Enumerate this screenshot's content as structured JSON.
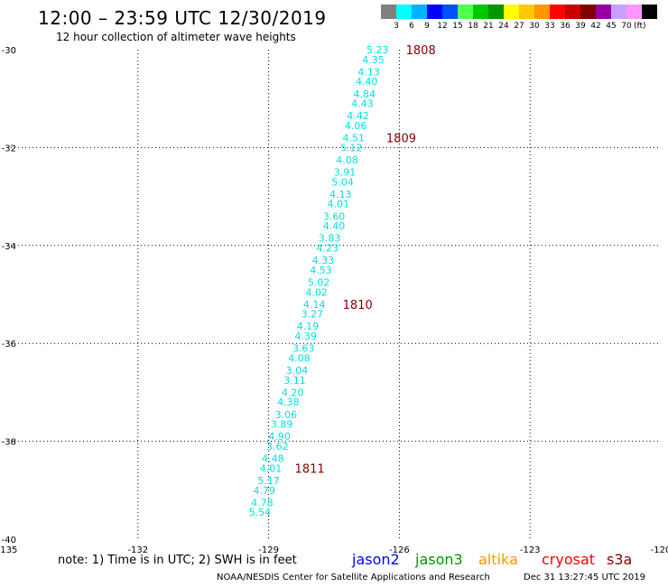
{
  "header": {
    "title": "12:00 – 23:59 UTC 12/30/2019",
    "subtitle": "12 hour collection of altimeter wave heights"
  },
  "legend": {
    "colors": [
      "#808080",
      "#00ffff",
      "#00b4ff",
      "#0000ff",
      "#0050ff",
      "#50ff50",
      "#00c800",
      "#009600",
      "#ffff00",
      "#ffc800",
      "#ff9600",
      "#ff0000",
      "#c80000",
      "#800000",
      "#9600a0",
      "#c8a0ff",
      "#ff96ff",
      "#000000"
    ],
    "ticks": [
      "3",
      "6",
      "9",
      "12",
      "15",
      "18",
      "21",
      "24",
      "27",
      "30",
      "33",
      "36",
      "39",
      "42",
      "45",
      "70"
    ],
    "unit": "(ft)"
  },
  "map": {
    "lon_range": [
      -135,
      -120
    ],
    "lat_range": [
      -40,
      -30
    ],
    "x_ticks": [
      "-135",
      "-132",
      "-129",
      "-126",
      "-123",
      "-120"
    ],
    "y_ticks": [
      "-30",
      "-32",
      "-34",
      "-36",
      "-38",
      "-40"
    ],
    "gridlines": true
  },
  "chart_data": {
    "type": "scatter",
    "track_color": "#00e0e0",
    "label_color": "#800000",
    "points": [
      {
        "lon": -126.5,
        "lat": -30.0,
        "swh": "5.23"
      },
      {
        "lon": -126.6,
        "lat": -30.2,
        "swh": "4.35"
      },
      {
        "lon": -126.7,
        "lat": -30.45,
        "swh": "4.13"
      },
      {
        "lon": -126.75,
        "lat": -30.65,
        "swh": "4.40"
      },
      {
        "lon": -126.8,
        "lat": -30.9,
        "swh": "4.84"
      },
      {
        "lon": -126.85,
        "lat": -31.1,
        "swh": "4.43"
      },
      {
        "lon": -126.95,
        "lat": -31.35,
        "swh": "4.42"
      },
      {
        "lon": -127.0,
        "lat": -31.55,
        "swh": "4.06"
      },
      {
        "lon": -127.05,
        "lat": -31.8,
        "swh": "4.51"
      },
      {
        "lon": -127.1,
        "lat": -32.0,
        "swh": "5.12"
      },
      {
        "lon": -127.2,
        "lat": -32.25,
        "swh": "4.08"
      },
      {
        "lon": -127.25,
        "lat": -32.5,
        "swh": "3.91"
      },
      {
        "lon": -127.3,
        "lat": -32.7,
        "swh": "5.04"
      },
      {
        "lon": -127.35,
        "lat": -32.95,
        "swh": "4.13"
      },
      {
        "lon": -127.4,
        "lat": -33.15,
        "swh": "4.01"
      },
      {
        "lon": -127.5,
        "lat": -33.4,
        "swh": "3.60"
      },
      {
        "lon": -127.5,
        "lat": -33.6,
        "swh": "4.40"
      },
      {
        "lon": -127.6,
        "lat": -33.85,
        "swh": "3.83"
      },
      {
        "lon": -127.65,
        "lat": -34.05,
        "swh": "4.23"
      },
      {
        "lon": -127.75,
        "lat": -34.3,
        "swh": "4.33"
      },
      {
        "lon": -127.8,
        "lat": -34.5,
        "swh": "4.53"
      },
      {
        "lon": -127.85,
        "lat": -34.75,
        "swh": "5.02"
      },
      {
        "lon": -127.9,
        "lat": -34.95,
        "swh": "4.02"
      },
      {
        "lon": -127.95,
        "lat": -35.2,
        "swh": "4.14"
      },
      {
        "lon": -128.0,
        "lat": -35.4,
        "swh": "3.27"
      },
      {
        "lon": -128.1,
        "lat": -35.65,
        "swh": "4.19"
      },
      {
        "lon": -128.15,
        "lat": -35.85,
        "swh": "4.39"
      },
      {
        "lon": -128.2,
        "lat": -36.1,
        "swh": "3.63"
      },
      {
        "lon": -128.3,
        "lat": -36.3,
        "swh": "4.08"
      },
      {
        "lon": -128.35,
        "lat": -36.55,
        "swh": "3.04"
      },
      {
        "lon": -128.4,
        "lat": -36.75,
        "swh": "3.11"
      },
      {
        "lon": -128.45,
        "lat": -37.0,
        "swh": "4.20"
      },
      {
        "lon": -128.55,
        "lat": -37.2,
        "swh": "4.38"
      },
      {
        "lon": -128.6,
        "lat": -37.45,
        "swh": "3.06"
      },
      {
        "lon": -128.7,
        "lat": -37.65,
        "swh": "3.89"
      },
      {
        "lon": -128.75,
        "lat": -37.9,
        "swh": "4.90"
      },
      {
        "lon": -128.8,
        "lat": -38.1,
        "swh": "3.62"
      },
      {
        "lon": -128.9,
        "lat": -38.35,
        "swh": "4.48"
      },
      {
        "lon": -128.95,
        "lat": -38.55,
        "swh": "4.01"
      },
      {
        "lon": -129.0,
        "lat": -38.8,
        "swh": "5.17"
      },
      {
        "lon": -129.1,
        "lat": -39.0,
        "swh": "4.79"
      },
      {
        "lon": -129.15,
        "lat": -39.25,
        "swh": "4.78"
      },
      {
        "lon": -129.2,
        "lat": -39.45,
        "swh": "5.54"
      }
    ],
    "time_labels": [
      {
        "lon": -125.85,
        "lat": -30.0,
        "label": "1808"
      },
      {
        "lon": -126.3,
        "lat": -31.8,
        "label": "1809"
      },
      {
        "lon": -127.3,
        "lat": -35.2,
        "label": "1810"
      },
      {
        "lon": -128.4,
        "lat": -38.55,
        "label": "1811"
      }
    ]
  },
  "note": "note:  1) Time is in UTC; 2) SWH is in feet",
  "satellites": [
    {
      "name": "jason2",
      "color": "#0000ff"
    },
    {
      "name": "jason3",
      "color": "#009600"
    },
    {
      "name": "altika",
      "color": "#ff9600"
    },
    {
      "name": "cryosat",
      "color": "#ff0000"
    },
    {
      "name": "s3a",
      "color": "#800000"
    }
  ],
  "footer": {
    "credit": "NOAA/NESDIS Center for Satellite Applications and Research",
    "timestamp": "Dec 31 13:27:45 UTC 2019"
  }
}
